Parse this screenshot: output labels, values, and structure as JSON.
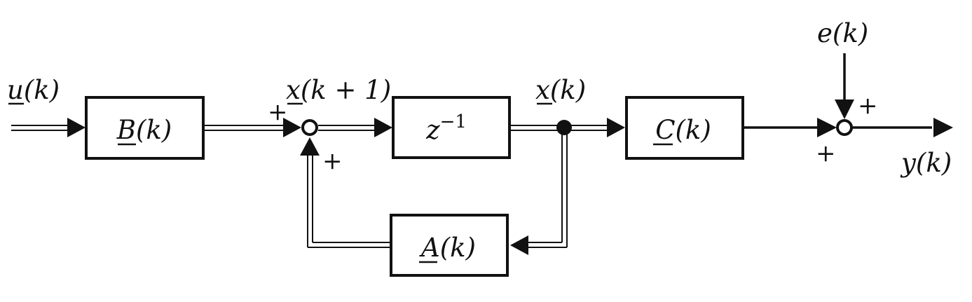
{
  "labels": {
    "input": "u(k)",
    "state_next": "x(k + 1)",
    "state": "x(k)",
    "noise": "e(k)",
    "output": "y(k)"
  },
  "blocks": {
    "b": "B(k)",
    "delay": "z",
    "delay_exp": "−1",
    "c": "C(k)",
    "a": "A(k)"
  },
  "signs": {
    "sum1_left": "+",
    "sum1_bottom": "+",
    "sum2_top": "+",
    "sum2_left": "+"
  }
}
